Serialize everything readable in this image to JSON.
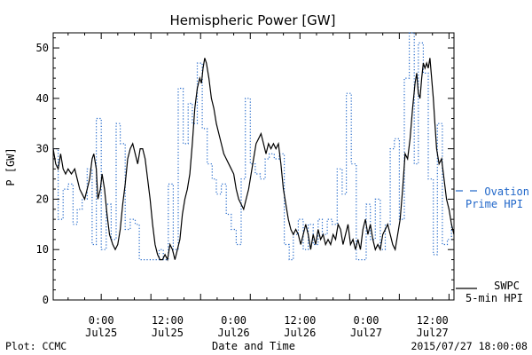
{
  "chart_data": {
    "type": "line",
    "title": "Hemispheric Power [GW]",
    "xlabel": "Date and Time",
    "ylabel": "P [GW]",
    "ylim": [
      0,
      53
    ],
    "yticks": [
      0,
      10,
      20,
      30,
      40,
      50
    ],
    "x_unit": "hours since 2015/07/24 00:00",
    "xlim": [
      18.2,
      66.6
    ],
    "xticks": [
      {
        "x": 24,
        "time": "0:00",
        "date": "Jul25"
      },
      {
        "x": 32,
        "time": "12:00",
        "date": "Jul25"
      },
      {
        "x": 40,
        "time": "0:00",
        "date": "Jul26"
      },
      {
        "x": 48,
        "time": "12:00",
        "date": "Jul26"
      },
      {
        "x": 56,
        "time": "0:00",
        "date": "Jul27"
      },
      {
        "x": 64,
        "time": "12:00",
        "date": "Jul27"
      }
    ],
    "grid": false,
    "series": [
      {
        "name": "SWPC 5-min HPI",
        "legend_line1": "SWPC",
        "legend_line2": "5-min HPI",
        "color": "#000000",
        "style": "solid",
        "points": [
          [
            18.2,
            30
          ],
          [
            18.5,
            27
          ],
          [
            18.8,
            26
          ],
          [
            19.1,
            29
          ],
          [
            19.4,
            26
          ],
          [
            19.7,
            25
          ],
          [
            20.0,
            26
          ],
          [
            20.4,
            25
          ],
          [
            20.8,
            26
          ],
          [
            21.1,
            24
          ],
          [
            21.4,
            22
          ],
          [
            21.7,
            21
          ],
          [
            22.0,
            20
          ],
          [
            22.3,
            22
          ],
          [
            22.6,
            24
          ],
          [
            22.9,
            28
          ],
          [
            23.1,
            29
          ],
          [
            23.4,
            26
          ],
          [
            23.6,
            20
          ],
          [
            23.9,
            22
          ],
          [
            24.1,
            25
          ],
          [
            24.4,
            22
          ],
          [
            24.7,
            17
          ],
          [
            25.0,
            13
          ],
          [
            25.4,
            11
          ],
          [
            25.7,
            10
          ],
          [
            26.0,
            11
          ],
          [
            26.3,
            14
          ],
          [
            26.6,
            19
          ],
          [
            26.9,
            23
          ],
          [
            27.2,
            28
          ],
          [
            27.5,
            30
          ],
          [
            27.8,
            31
          ],
          [
            28.1,
            29
          ],
          [
            28.4,
            27
          ],
          [
            28.7,
            30
          ],
          [
            29.0,
            30
          ],
          [
            29.3,
            28
          ],
          [
            29.6,
            24
          ],
          [
            29.9,
            20
          ],
          [
            30.2,
            15
          ],
          [
            30.5,
            11
          ],
          [
            30.8,
            9
          ],
          [
            31.1,
            8
          ],
          [
            31.4,
            8
          ],
          [
            31.7,
            9
          ],
          [
            32.0,
            8
          ],
          [
            32.3,
            11
          ],
          [
            32.6,
            10
          ],
          [
            32.9,
            8
          ],
          [
            33.2,
            10
          ],
          [
            33.5,
            12
          ],
          [
            33.8,
            17
          ],
          [
            34.1,
            20
          ],
          [
            34.4,
            22
          ],
          [
            34.7,
            25
          ],
          [
            35.0,
            31
          ],
          [
            35.3,
            38
          ],
          [
            35.6,
            42
          ],
          [
            35.9,
            44
          ],
          [
            36.1,
            43
          ],
          [
            36.3,
            46
          ],
          [
            36.5,
            48
          ],
          [
            36.7,
            47
          ],
          [
            37.0,
            44
          ],
          [
            37.3,
            40
          ],
          [
            37.6,
            38
          ],
          [
            37.9,
            35
          ],
          [
            38.2,
            33
          ],
          [
            38.5,
            31
          ],
          [
            38.8,
            29
          ],
          [
            39.1,
            28
          ],
          [
            39.4,
            27
          ],
          [
            39.7,
            26
          ],
          [
            40.0,
            25
          ],
          [
            40.3,
            22
          ],
          [
            40.6,
            20
          ],
          [
            40.9,
            19
          ],
          [
            41.2,
            18
          ],
          [
            41.5,
            20
          ],
          [
            41.8,
            22
          ],
          [
            42.1,
            25
          ],
          [
            42.4,
            28
          ],
          [
            42.7,
            31
          ],
          [
            43.0,
            32
          ],
          [
            43.3,
            33
          ],
          [
            43.6,
            31
          ],
          [
            43.9,
            29
          ],
          [
            44.2,
            31
          ],
          [
            44.5,
            30
          ],
          [
            44.8,
            31
          ],
          [
            45.1,
            30
          ],
          [
            45.4,
            31
          ],
          [
            45.7,
            27
          ],
          [
            46.0,
            22
          ],
          [
            46.3,
            19
          ],
          [
            46.6,
            16
          ],
          [
            46.9,
            14
          ],
          [
            47.2,
            13
          ],
          [
            47.5,
            14
          ],
          [
            47.8,
            13
          ],
          [
            48.1,
            11
          ],
          [
            48.4,
            13
          ],
          [
            48.7,
            15
          ],
          [
            49.0,
            13
          ],
          [
            49.3,
            10
          ],
          [
            49.6,
            13
          ],
          [
            49.9,
            11
          ],
          [
            50.2,
            14
          ],
          [
            50.5,
            12
          ],
          [
            50.8,
            13
          ],
          [
            51.1,
            11
          ],
          [
            51.4,
            12
          ],
          [
            51.7,
            11
          ],
          [
            52.0,
            13
          ],
          [
            52.3,
            12
          ],
          [
            52.6,
            15
          ],
          [
            52.9,
            14
          ],
          [
            53.2,
            11
          ],
          [
            53.5,
            13
          ],
          [
            53.8,
            15
          ],
          [
            54.1,
            11
          ],
          [
            54.4,
            12
          ],
          [
            54.7,
            10
          ],
          [
            55.0,
            12
          ],
          [
            55.3,
            10
          ],
          [
            55.6,
            14
          ],
          [
            55.9,
            16
          ],
          [
            56.2,
            13
          ],
          [
            56.5,
            15
          ],
          [
            56.8,
            12
          ],
          [
            57.1,
            10
          ],
          [
            57.4,
            11
          ],
          [
            57.7,
            10
          ],
          [
            58.0,
            13
          ],
          [
            58.3,
            14
          ],
          [
            58.6,
            15
          ],
          [
            58.9,
            13
          ],
          [
            59.2,
            11
          ],
          [
            59.5,
            10
          ],
          [
            59.8,
            13
          ],
          [
            60.1,
            16
          ],
          [
            60.4,
            22
          ],
          [
            60.7,
            29
          ],
          [
            61.0,
            28
          ],
          [
            61.3,
            32
          ],
          [
            61.6,
            38
          ],
          [
            61.9,
            43
          ],
          [
            62.1,
            45
          ],
          [
            62.3,
            41
          ],
          [
            62.5,
            40
          ],
          [
            62.7,
            44
          ],
          [
            62.9,
            47
          ],
          [
            63.1,
            46
          ],
          [
            63.3,
            47
          ],
          [
            63.5,
            46
          ],
          [
            63.7,
            48
          ],
          [
            63.9,
            44
          ],
          [
            64.1,
            40
          ],
          [
            64.3,
            35
          ],
          [
            64.5,
            30
          ],
          [
            64.8,
            27
          ],
          [
            65.1,
            28
          ],
          [
            65.4,
            24
          ],
          [
            65.7,
            20
          ],
          [
            66.0,
            18
          ],
          [
            66.3,
            15
          ],
          [
            66.6,
            13
          ]
        ]
      },
      {
        "name": "Ovation Prime HPI",
        "legend_line1": "Ovation",
        "legend_line2": "Prime HPI",
        "color": "#1f66c9",
        "style": "dotted-step",
        "points": [
          [
            18.2,
            30
          ],
          [
            18.8,
            16
          ],
          [
            19.4,
            22
          ],
          [
            20.0,
            23
          ],
          [
            20.6,
            15
          ],
          [
            21.1,
            18
          ],
          [
            21.7,
            20
          ],
          [
            22.3,
            26
          ],
          [
            22.9,
            11
          ],
          [
            23.4,
            36
          ],
          [
            24.0,
            10
          ],
          [
            24.6,
            19
          ],
          [
            25.2,
            12
          ],
          [
            25.8,
            35
          ],
          [
            26.3,
            31
          ],
          [
            26.9,
            14
          ],
          [
            27.5,
            16
          ],
          [
            28.1,
            15
          ],
          [
            28.6,
            8
          ],
          [
            29.2,
            8
          ],
          [
            29.8,
            8
          ],
          [
            30.4,
            8
          ],
          [
            31.0,
            10
          ],
          [
            31.5,
            8
          ],
          [
            32.1,
            23
          ],
          [
            32.7,
            10
          ],
          [
            33.3,
            42
          ],
          [
            33.9,
            31
          ],
          [
            34.5,
            39
          ],
          [
            35.0,
            35
          ],
          [
            35.6,
            47
          ],
          [
            36.2,
            34
          ],
          [
            36.8,
            27
          ],
          [
            37.4,
            24
          ],
          [
            37.9,
            21
          ],
          [
            38.5,
            23
          ],
          [
            39.1,
            17
          ],
          [
            39.7,
            14
          ],
          [
            40.3,
            11
          ],
          [
            40.9,
            24
          ],
          [
            41.4,
            40
          ],
          [
            42.0,
            27
          ],
          [
            42.6,
            25
          ],
          [
            43.2,
            24
          ],
          [
            43.8,
            28
          ],
          [
            44.3,
            29
          ],
          [
            44.9,
            28
          ],
          [
            45.5,
            29
          ],
          [
            46.1,
            11
          ],
          [
            46.7,
            8
          ],
          [
            47.2,
            13
          ],
          [
            47.8,
            16
          ],
          [
            48.4,
            10
          ],
          [
            49.0,
            15
          ],
          [
            49.6,
            11
          ],
          [
            50.2,
            16
          ],
          [
            50.7,
            13
          ],
          [
            51.3,
            16
          ],
          [
            51.9,
            15
          ],
          [
            52.5,
            26
          ],
          [
            53.1,
            21
          ],
          [
            53.6,
            41
          ],
          [
            54.2,
            27
          ],
          [
            54.8,
            8
          ],
          [
            55.4,
            8
          ],
          [
            56.0,
            19
          ],
          [
            56.5,
            12
          ],
          [
            57.1,
            20
          ],
          [
            57.7,
            10
          ],
          [
            58.3,
            15
          ],
          [
            58.9,
            30
          ],
          [
            59.4,
            32
          ],
          [
            60.0,
            16
          ],
          [
            60.6,
            44
          ],
          [
            61.2,
            53
          ],
          [
            61.8,
            27
          ],
          [
            62.3,
            51
          ],
          [
            62.9,
            45
          ],
          [
            63.5,
            24
          ],
          [
            64.1,
            9
          ],
          [
            64.6,
            35
          ],
          [
            65.2,
            11
          ],
          [
            65.8,
            12
          ],
          [
            66.3,
            15
          ],
          [
            66.6,
            15
          ]
        ]
      }
    ]
  },
  "footer": {
    "left": "Plot: CCMC",
    "right": "2015/07/27 18:00:08"
  }
}
